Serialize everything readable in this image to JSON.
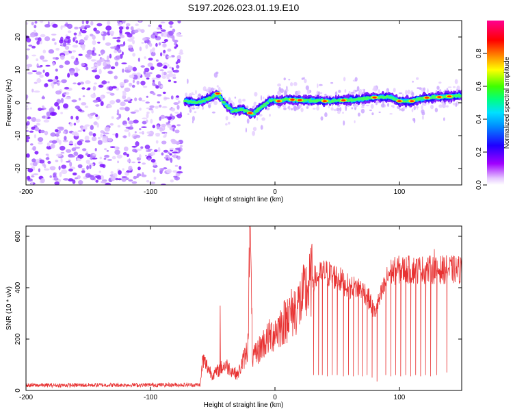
{
  "title": "S197.2026.023.01.19.E10",
  "chart_data": [
    {
      "type": "heatmap",
      "name": "spectrogram",
      "xlabel": "Height of straight line (km)",
      "ylabel": "Frequency (Hz)",
      "xlim": [
        -200,
        150
      ],
      "ylim": [
        -25,
        25
      ],
      "xticks": [
        -200,
        -100,
        0,
        100
      ],
      "yticks": [
        -20,
        -10,
        0,
        10,
        20
      ],
      "colorbar": {
        "label": "Normalized spectral amplitude",
        "range": [
          0,
          1
        ],
        "ticks": [
          "0.0",
          "0.2",
          "0.4",
          "0.6",
          "0.8"
        ],
        "colors": [
          "#ffffff",
          "#a000ff",
          "#0000ff",
          "#00d8ff",
          "#00ff00",
          "#ffff00",
          "#ff8000",
          "#ff0000",
          "#ff0090"
        ]
      },
      "noise_region_km": [
        -200,
        -75
      ],
      "ridge_points": [
        {
          "x": -72,
          "y": 0.5
        },
        {
          "x": -62,
          "y": 0.0
        },
        {
          "x": -52,
          "y": 1.5
        },
        {
          "x": -46,
          "y": 2.8
        },
        {
          "x": -40,
          "y": -0.5
        },
        {
          "x": -34,
          "y": -2.5
        },
        {
          "x": -26,
          "y": -2.0
        },
        {
          "x": -18,
          "y": -3.5
        },
        {
          "x": -10,
          "y": -1.0
        },
        {
          "x": -3,
          "y": 0.8
        },
        {
          "x": 3,
          "y": 0.5
        },
        {
          "x": 10,
          "y": 1.0
        },
        {
          "x": 20,
          "y": 0.8
        },
        {
          "x": 40,
          "y": 0.5
        },
        {
          "x": 60,
          "y": 0.8
        },
        {
          "x": 80,
          "y": 1.6
        },
        {
          "x": 92,
          "y": 1.8
        },
        {
          "x": 100,
          "y": 0.5
        },
        {
          "x": 110,
          "y": 0.5
        },
        {
          "x": 120,
          "y": 1.5
        },
        {
          "x": 135,
          "y": 1.8
        },
        {
          "x": 150,
          "y": 2.2
        }
      ]
    },
    {
      "type": "line",
      "name": "snr",
      "xlabel": "Height of straight line (km)",
      "ylabel": "SNR (10 * v/v)",
      "xlim": [
        -200,
        150
      ],
      "ylim": [
        0,
        640
      ],
      "xticks": [
        -200,
        -100,
        0,
        100
      ],
      "yticks": [
        0,
        200,
        400,
        600
      ],
      "series": [
        {
          "name": "SNR",
          "color": "#e83232",
          "envelope": [
            {
              "x": -200,
              "y": 20
            },
            {
              "x": -60,
              "y": 22
            },
            {
              "x": -58,
              "y": 120
            },
            {
              "x": -50,
              "y": 60
            },
            {
              "x": -40,
              "y": 100
            },
            {
              "x": -30,
              "y": 60
            },
            {
              "x": -22,
              "y": 160
            },
            {
              "x": -20,
              "y": 600
            },
            {
              "x": -18,
              "y": 120
            },
            {
              "x": -10,
              "y": 180
            },
            {
              "x": 0,
              "y": 230
            },
            {
              "x": 10,
              "y": 280
            },
            {
              "x": 20,
              "y": 340
            },
            {
              "x": 30,
              "y": 430
            },
            {
              "x": 40,
              "y": 460
            },
            {
              "x": 50,
              "y": 440
            },
            {
              "x": 60,
              "y": 400
            },
            {
              "x": 70,
              "y": 400
            },
            {
              "x": 76,
              "y": 350
            },
            {
              "x": 80,
              "y": 300
            },
            {
              "x": 86,
              "y": 380
            },
            {
              "x": 92,
              "y": 460
            },
            {
              "x": 100,
              "y": 470
            },
            {
              "x": 120,
              "y": 470
            },
            {
              "x": 150,
              "y": 470
            }
          ],
          "spikes": [
            {
              "x": -44,
              "y": 330
            },
            {
              "x": -20,
              "y": 640
            },
            {
              "x": 10,
              "y": 355
            },
            {
              "x": 128,
              "y": 550
            }
          ],
          "dropouts": [
            {
              "x": 31,
              "y": 60
            },
            {
              "x": 35,
              "y": 60
            },
            {
              "x": 38,
              "y": 60
            },
            {
              "x": 42,
              "y": 55
            },
            {
              "x": 46,
              "y": 60
            },
            {
              "x": 50,
              "y": 60
            },
            {
              "x": 55,
              "y": 55
            },
            {
              "x": 59,
              "y": 60
            },
            {
              "x": 63,
              "y": 55
            },
            {
              "x": 67,
              "y": 60
            },
            {
              "x": 70,
              "y": 55
            },
            {
              "x": 74,
              "y": 60
            },
            {
              "x": 78,
              "y": 50
            },
            {
              "x": 82,
              "y": 35
            },
            {
              "x": 89,
              "y": 60
            },
            {
              "x": 93,
              "y": 55
            },
            {
              "x": 97,
              "y": 60
            },
            {
              "x": 101,
              "y": 55
            },
            {
              "x": 105,
              "y": 60
            },
            {
              "x": 109,
              "y": 55
            },
            {
              "x": 113,
              "y": 60
            },
            {
              "x": 117,
              "y": 55
            },
            {
              "x": 121,
              "y": 60
            },
            {
              "x": 125,
              "y": 55
            },
            {
              "x": 130,
              "y": 60
            },
            {
              "x": 138,
              "y": 70
            }
          ]
        }
      ]
    }
  ]
}
